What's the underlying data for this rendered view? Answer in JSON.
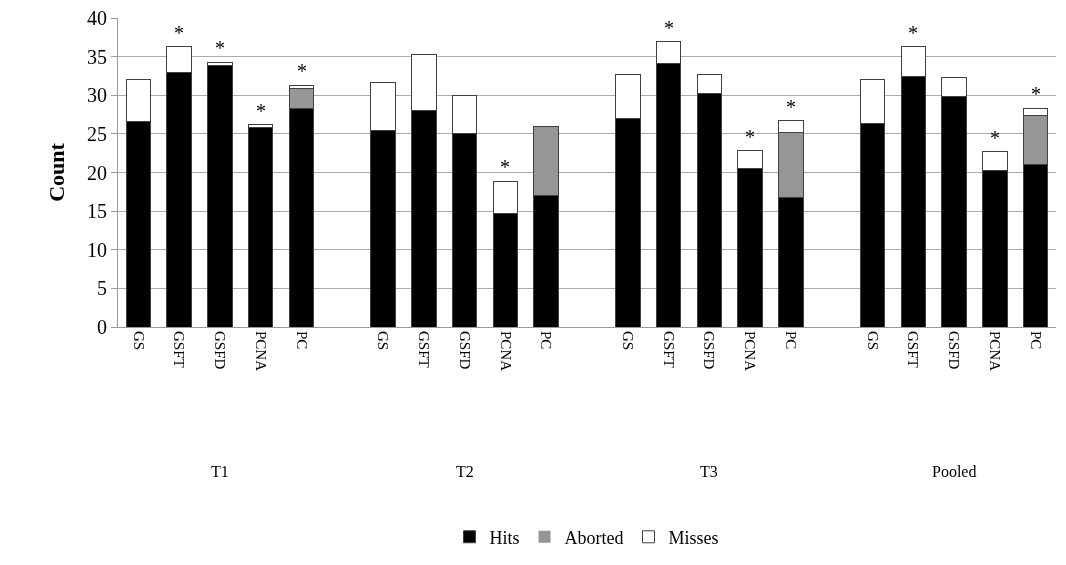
{
  "chart_data": {
    "type": "bar",
    "stacked": true,
    "ylabel": "Count",
    "categories": [
      "GS",
      "GSFT",
      "GSFD",
      "PCNA",
      "PC",
      "GS",
      "GSFT",
      "GSFD",
      "PCNA",
      "PC",
      "GS",
      "GSFT",
      "GSFD",
      "PCNA",
      "PC",
      "GS",
      "GSFT",
      "GSFD",
      "PCNA",
      "PC"
    ],
    "series": [
      {
        "name": "Hits",
        "color": "#000000",
        "values": [
          26.6,
          33,
          33.8,
          25.8,
          28.3,
          25.4,
          28,
          25,
          14.7,
          17,
          27,
          34.1,
          30.2,
          20.5,
          16.8,
          26.4,
          32.4,
          29.9,
          20.3,
          21.1
        ]
      },
      {
        "name": "Aborted",
        "color": "#969696",
        "values": [
          0,
          0,
          0,
          0,
          2.6,
          0,
          0,
          0,
          0,
          8.9,
          0,
          0,
          0,
          0,
          8.4,
          0,
          0,
          0,
          0,
          6.3
        ]
      },
      {
        "name": "Misses",
        "color": "#ffffff",
        "values": [
          5.4,
          3.3,
          0.5,
          0.4,
          0.4,
          6.2,
          7.3,
          5,
          4.2,
          0,
          5.7,
          2.8,
          2.5,
          2.3,
          1.5,
          5.7,
          3.9,
          2.4,
          2.4,
          0.9
        ],
        "value_labels": [
          null,
          "*",
          "*",
          "*",
          "*",
          null,
          null,
          null,
          "*",
          null,
          null,
          "*",
          null,
          "*",
          "*",
          null,
          "*",
          null,
          "*",
          "*"
        ]
      }
    ],
    "annotations": [
      "T1",
      "T2",
      "T3",
      "Pooled"
    ],
    "ylim": [
      0,
      40
    ],
    "yticks": [
      0,
      5,
      10,
      15,
      20,
      25,
      30,
      35,
      40
    ],
    "grid": "y",
    "legend": "bottom"
  }
}
